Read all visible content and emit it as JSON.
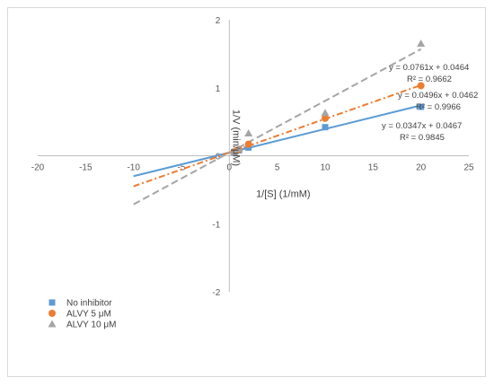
{
  "chart_data": {
    "type": "scatter",
    "xlabel": "1/[S] (1/mM)",
    "ylabel": "1/V (min/μM)",
    "xlim": [
      -20,
      25
    ],
    "ylim": [
      -2,
      2
    ],
    "xticks": [
      "-20",
      "-15",
      "-10",
      "-5",
      "0",
      "5",
      "10",
      "15",
      "20",
      "25"
    ],
    "yticks": [
      "-2",
      "-1",
      "0",
      "1",
      "2"
    ],
    "grid": false,
    "legend_position": "bottom-left",
    "series": [
      {
        "name": "No inhibitor",
        "marker": "square",
        "color": "#5b9bd5",
        "line_style": "solid",
        "points": [
          [
            0.5,
            0.05
          ],
          [
            1,
            0.08
          ],
          [
            2,
            0.12
          ],
          [
            10,
            0.42
          ],
          [
            20,
            0.72
          ]
        ],
        "trendline": {
          "slope": 0.0347,
          "intercept": 0.0467,
          "x_range": [
            -10,
            20
          ]
        },
        "equation": "y = 0.0347x + 0.0467",
        "r2": "R² = 0.9845"
      },
      {
        "name": "ALVY 5 μM",
        "marker": "circle",
        "color": "#ed7d31",
        "line_style": "dash-dot",
        "points": [
          [
            0.5,
            0.06
          ],
          [
            1,
            0.09
          ],
          [
            2,
            0.17
          ],
          [
            10,
            0.55
          ],
          [
            20,
            1.03
          ]
        ],
        "trendline": {
          "slope": 0.0496,
          "intercept": 0.0462,
          "x_range": [
            -10,
            20
          ]
        },
        "equation": "y = 0.0496x + 0.0462",
        "r2": "R² = 0.9966"
      },
      {
        "name": "ALVY 10 μM",
        "marker": "triangle",
        "color": "#a5a5a5",
        "line_style": "dashed",
        "points": [
          [
            0.5,
            0.06
          ],
          [
            1,
            0.1
          ],
          [
            2,
            0.33
          ],
          [
            10,
            0.63
          ],
          [
            20,
            1.65
          ]
        ],
        "trendline": {
          "slope": 0.0761,
          "intercept": 0.0464,
          "x_range": [
            -10,
            20
          ]
        },
        "equation": "y = 0.0761x + 0.0464",
        "r2": "R² = 0.9662"
      }
    ]
  }
}
